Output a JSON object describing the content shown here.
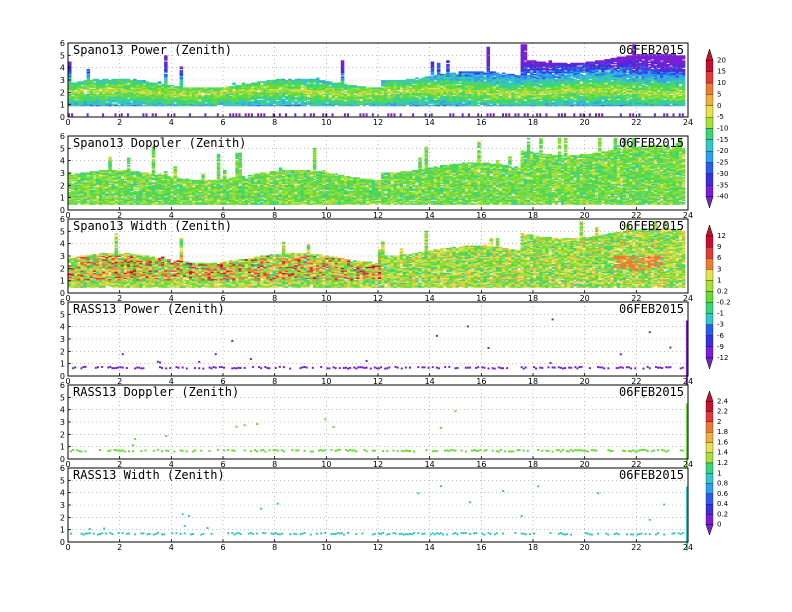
{
  "chart_data": [
    {
      "type": "heatmap",
      "title": "Spano13 Power (Zenith)",
      "date": "06FEB2015",
      "x_ticks": [
        "0",
        "2",
        "4",
        "6",
        "8",
        "10",
        "12",
        "14",
        "16",
        "18",
        "20",
        "22",
        "24"
      ],
      "y_ticks": [
        "0",
        "1",
        "2",
        "3",
        "4",
        "5",
        "6"
      ],
      "xlim": [
        0,
        24
      ],
      "ylim": [
        0,
        6
      ],
      "grid": "dotted",
      "colorbar": 0,
      "kind": "power"
    },
    {
      "type": "heatmap",
      "title": "Spano13 Doppler (Zenith)",
      "date": "06FEB2015",
      "x_ticks": [
        "0",
        "2",
        "4",
        "6",
        "8",
        "10",
        "12",
        "14",
        "16",
        "18",
        "20",
        "22",
        "24"
      ],
      "y_ticks": [
        "0",
        "1",
        "2",
        "3",
        "4",
        "5",
        "6"
      ],
      "xlim": [
        0,
        24
      ],
      "ylim": [
        0,
        6
      ],
      "grid": "dotted",
      "colorbar": null,
      "kind": "doppler"
    },
    {
      "type": "heatmap",
      "title": "Spano13 Width (Zenith)",
      "date": "06FEB2015",
      "x_ticks": [
        "0",
        "2",
        "4",
        "6",
        "8",
        "10",
        "12",
        "14",
        "16",
        "18",
        "20",
        "22",
        "24"
      ],
      "y_ticks": [
        "0",
        "1",
        "2",
        "3",
        "4",
        "5",
        "6"
      ],
      "xlim": [
        0,
        24
      ],
      "ylim": [
        0,
        6
      ],
      "grid": "dotted",
      "colorbar": 1,
      "kind": "width"
    },
    {
      "type": "heatmap",
      "title": "RASS13 Power (Zenith)",
      "date": "06FEB2015",
      "x_ticks": [
        "0",
        "2",
        "4",
        "6",
        "8",
        "10",
        "12",
        "14",
        "16",
        "18",
        "20",
        "22",
        "24"
      ],
      "y_ticks": [
        "0",
        "1",
        "2",
        "3",
        "4",
        "5",
        "6"
      ],
      "xlim": [
        0,
        24
      ],
      "ylim": [
        0,
        6
      ],
      "grid": "dotted",
      "colorbar": null,
      "kind": "rass_power"
    },
    {
      "type": "heatmap",
      "title": "RASS13 Doppler (Zenith)",
      "date": "06FEB2015",
      "x_ticks": [
        "0",
        "2",
        "4",
        "6",
        "8",
        "10",
        "12",
        "14",
        "16",
        "18",
        "20",
        "22",
        "24"
      ],
      "y_ticks": [
        "0",
        "1",
        "2",
        "3",
        "4",
        "5",
        "6"
      ],
      "xlim": [
        0,
        24
      ],
      "ylim": [
        0,
        6
      ],
      "grid": "dotted",
      "colorbar": 2,
      "kind": "rass_doppler"
    },
    {
      "type": "heatmap",
      "title": "RASS13 Width (Zenith)",
      "date": "06FEB2015",
      "x_ticks": [
        "0",
        "2",
        "4",
        "6",
        "8",
        "10",
        "12",
        "14",
        "16",
        "18",
        "20",
        "22",
        "24"
      ],
      "y_ticks": [
        "0",
        "1",
        "2",
        "3",
        "4",
        "5",
        "6"
      ],
      "xlim": [
        0,
        24
      ],
      "ylim": [
        0,
        6
      ],
      "grid": "dotted",
      "colorbar": null,
      "kind": "rass_width"
    }
  ],
  "colorbars": [
    {
      "labels": [
        "20",
        "15",
        "10",
        "5",
        "0",
        "-5",
        "-10",
        "-15",
        "-20",
        "-25",
        "-30",
        "-35",
        "-40"
      ]
    },
    {
      "labels": [
        "12",
        "9",
        "6",
        "3",
        "1",
        "0.2",
        "-0.2",
        "-1",
        "-3",
        "-6",
        "-9",
        "-12"
      ]
    },
    {
      "labels": [
        "2.4",
        "2.2",
        "2",
        "1.8",
        "1.6",
        "1.4",
        "1.2",
        "1",
        "0.8",
        "0.6",
        "0.4",
        "0.2",
        "0"
      ]
    }
  ],
  "colors": {
    "ramp": [
      "#7a1fd6",
      "#3b2fe0",
      "#2a5cf0",
      "#2fa0f0",
      "#33c8c8",
      "#3ad47a",
      "#66dd33",
      "#a8e03a",
      "#e8e050",
      "#f0b040",
      "#f07a35",
      "#e03a3a",
      "#c8102e"
    ]
  }
}
